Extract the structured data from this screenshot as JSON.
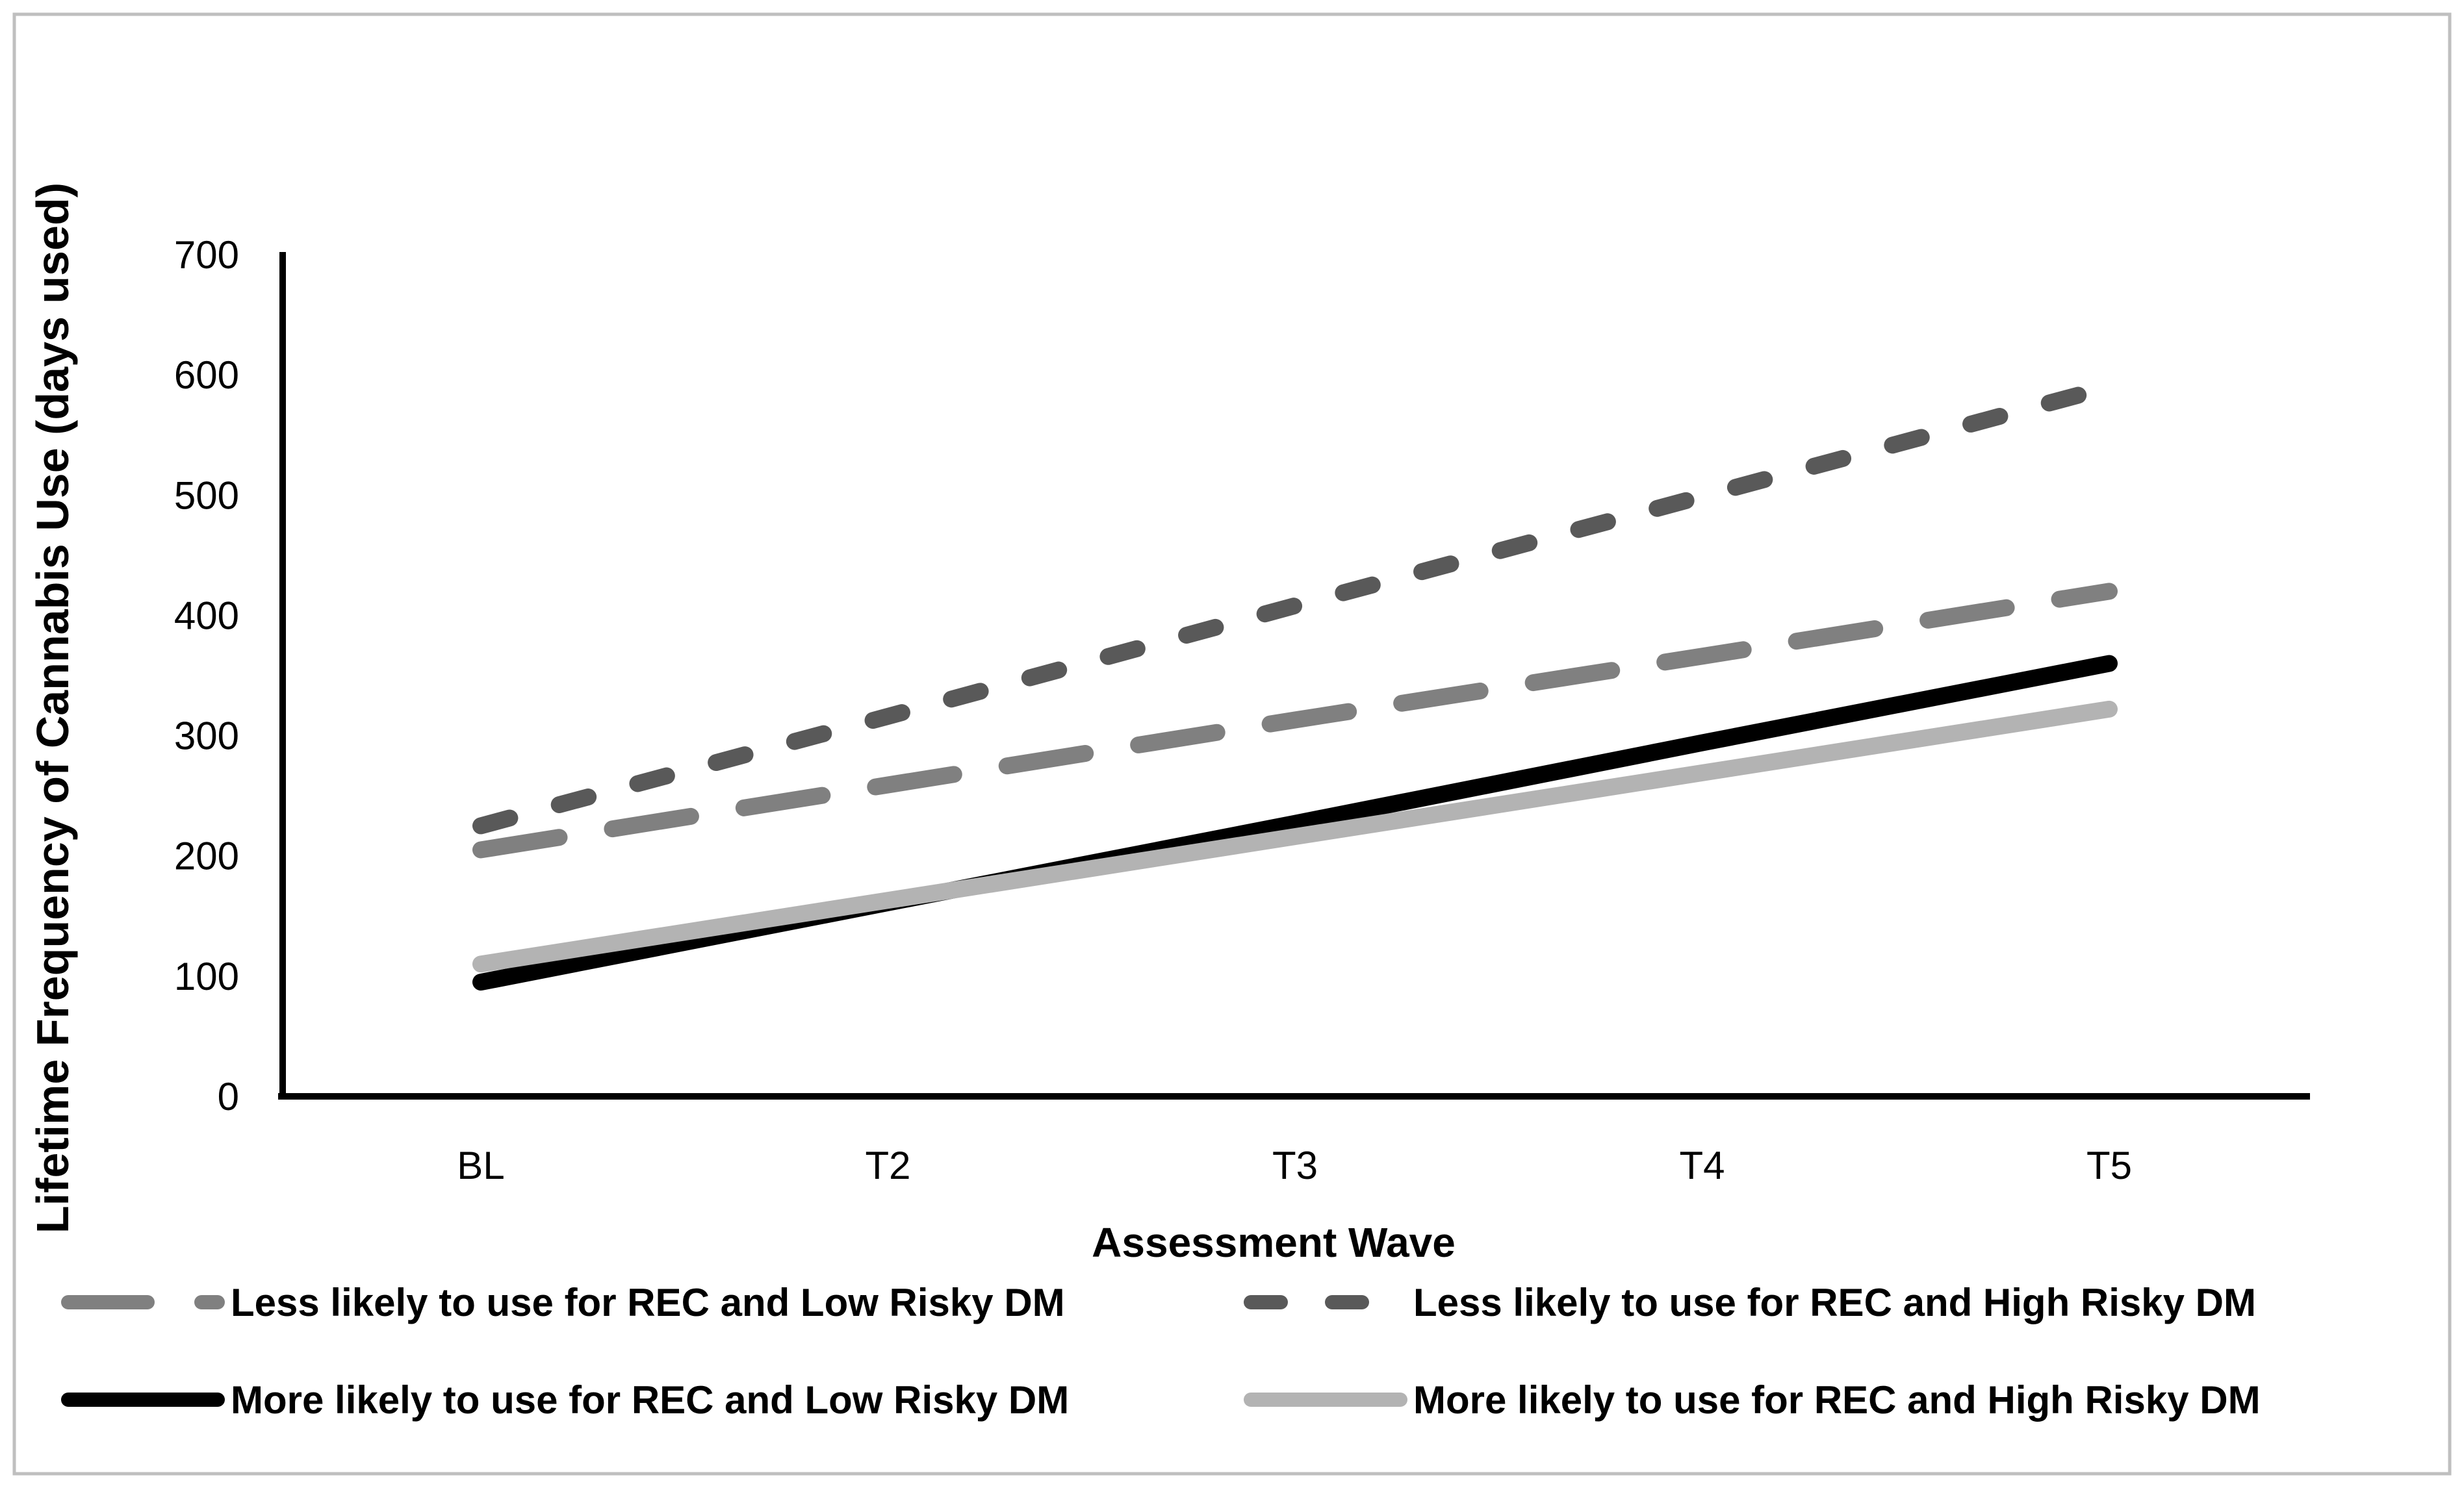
{
  "figure": {
    "background": "#ffffff",
    "frame_border_color": "#bfbfbf",
    "axis_color": "#000000"
  },
  "chart_data": {
    "type": "line",
    "title": "",
    "xlabel": "Assessment Wave",
    "ylabel": "Lifetime Frequency of Cannabis Use (days used)",
    "categories": [
      "BL",
      "T2",
      "T3",
      "T4",
      "T5"
    ],
    "ylim": [
      0,
      700
    ],
    "yticks": [
      0,
      100,
      200,
      300,
      400,
      500,
      600,
      700
    ],
    "grid": false,
    "legend_position": "bottom",
    "series": [
      {
        "name": "Less likely to use for REC and Low Risky DM",
        "color": "#808080",
        "style": "long-dash",
        "values": [
          205,
          259,
          313,
          366,
          420
        ]
      },
      {
        "name": "Less likely to use for REC and High Risky DM",
        "color": "#595959",
        "style": "short-dash",
        "values": [
          225,
          316,
          408,
          499,
          590
        ]
      },
      {
        "name": "More likely to use for REC and Low Risky DM",
        "color": "#000000",
        "style": "solid",
        "values": [
          95,
          161,
          227,
          294,
          360
        ]
      },
      {
        "name": "More likely to use for REC and High Risky DM",
        "color": "#b3b3b3",
        "style": "solid",
        "values": [
          110,
          163,
          216,
          269,
          322
        ]
      }
    ]
  }
}
